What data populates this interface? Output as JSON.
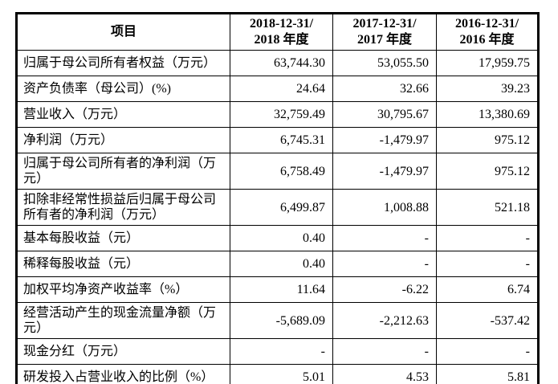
{
  "colors": {
    "background": "#ffffff",
    "border": "#000000",
    "text": "#000000"
  },
  "table": {
    "header": {
      "item": "项目",
      "periods": [
        {
          "line1": "2018-12-31/",
          "line2": "2018 年度"
        },
        {
          "line1": "2017-12-31/",
          "line2": "2017 年度"
        },
        {
          "line1": "2016-12-31/",
          "line2": "2016 年度"
        }
      ]
    },
    "rows": [
      {
        "label": "归属于母公司所有者权益（万元）",
        "values": [
          "63,744.30",
          "53,055.50",
          "17,959.75"
        ]
      },
      {
        "label": "资产负债率（母公司）(%)",
        "values": [
          "24.64",
          "32.66",
          "39.23"
        ]
      },
      {
        "label": "营业收入（万元）",
        "values": [
          "32,759.49",
          "30,795.67",
          "13,380.69"
        ]
      },
      {
        "label": "净利润（万元）",
        "values": [
          "6,745.31",
          "-1,479.97",
          "975.12"
        ]
      },
      {
        "label": "归属于母公司所有者的净利润（万元）",
        "values": [
          "6,758.49",
          "-1,479.97",
          "975.12"
        ]
      },
      {
        "label": "扣除非经常性损益后归属于母公司所有者的净利润（万元）",
        "values": [
          "6,499.87",
          "1,008.88",
          "521.18"
        ]
      },
      {
        "label": "基本每股收益（元）",
        "values": [
          "0.40",
          "-",
          "-"
        ]
      },
      {
        "label": "稀释每股收益（元）",
        "values": [
          "0.40",
          "-",
          "-"
        ]
      },
      {
        "label": "加权平均净资产收益率（%）",
        "values": [
          "11.64",
          "-6.22",
          "6.74"
        ]
      },
      {
        "label": "经营活动产生的现金流量净额（万元）",
        "values": [
          "-5,689.09",
          "-2,212.63",
          "-537.42"
        ]
      },
      {
        "label": "现金分红（万元）",
        "values": [
          "-",
          "-",
          "-"
        ]
      },
      {
        "label": "研发投入占营业收入的比例（%）",
        "values": [
          "5.01",
          "4.53",
          "5.81"
        ]
      }
    ]
  }
}
